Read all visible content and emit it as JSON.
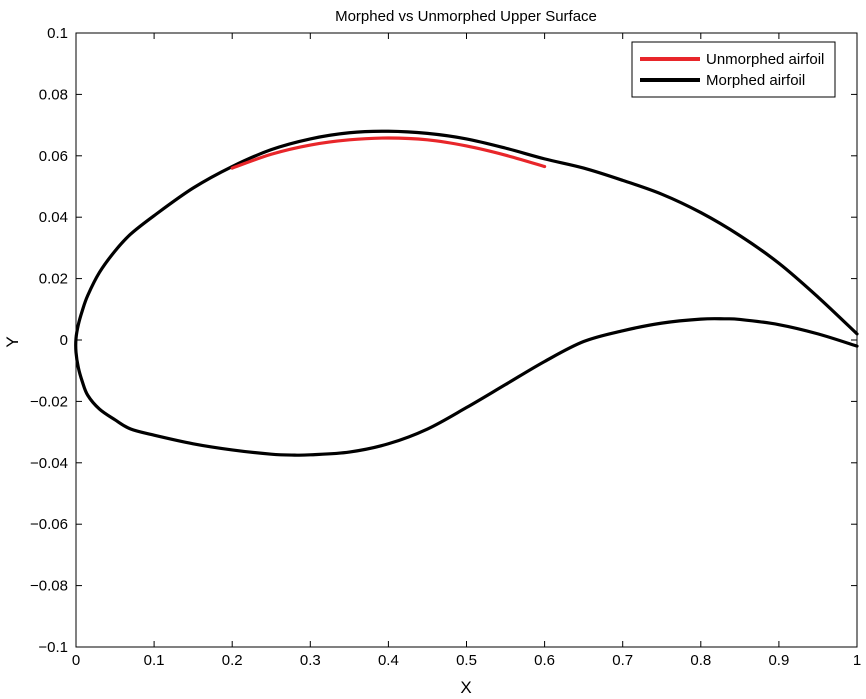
{
  "chart_data": {
    "type": "line",
    "title": "Morphed vs Unmorphed Upper Surface",
    "xlabel": "X",
    "ylabel": "Y",
    "xlim": [
      0,
      1
    ],
    "ylim": [
      -0.1,
      0.1
    ],
    "grid": false,
    "legend_position": "top-right",
    "x_ticks": [
      0,
      0.1,
      0.2,
      0.3,
      0.4,
      0.5,
      0.6,
      0.7,
      0.8,
      0.9,
      1
    ],
    "x_tick_labels": [
      "0",
      "0.1",
      "0.2",
      "0.3",
      "0.4",
      "0.5",
      "0.6",
      "0.7",
      "0.8",
      "0.9",
      "1"
    ],
    "y_ticks": [
      -0.1,
      -0.08,
      -0.06,
      -0.04,
      -0.02,
      0,
      0.02,
      0.04,
      0.06,
      0.08,
      0.1
    ],
    "y_tick_labels": [
      "−0.1",
      "−0.08",
      "−0.06",
      "−0.04",
      "−0.02",
      "0",
      "0.02",
      "0.04",
      "0.06",
      "0.08",
      "0.1"
    ],
    "series": [
      {
        "name": "Unmorphed airfoil",
        "color": "#e8262a",
        "x": [
          0.2,
          0.25,
          0.3,
          0.35,
          0.4,
          0.45,
          0.5,
          0.55,
          0.6
        ],
        "y": [
          0.056,
          0.0605,
          0.0635,
          0.0652,
          0.0658,
          0.0652,
          0.0632,
          0.0602,
          0.0565
        ]
      },
      {
        "name": "Morphed airfoil",
        "color": "#000000",
        "x": [
          1.0,
          0.95,
          0.9,
          0.85,
          0.8,
          0.75,
          0.7,
          0.65,
          0.6,
          0.55,
          0.5,
          0.45,
          0.4,
          0.35,
          0.3,
          0.25,
          0.2,
          0.15,
          0.1,
          0.07,
          0.05,
          0.03,
          0.015,
          0.008,
          0.003,
          0.0,
          0.0,
          0.003,
          0.008,
          0.015,
          0.03,
          0.05,
          0.07,
          0.1,
          0.15,
          0.2,
          0.25,
          0.28,
          0.3,
          0.35,
          0.4,
          0.45,
          0.5,
          0.55,
          0.6,
          0.65,
          0.7,
          0.75,
          0.8,
          0.83,
          0.85,
          0.9,
          0.95,
          1.0
        ],
        "y": [
          0.002,
          0.014,
          0.025,
          0.034,
          0.0415,
          0.0475,
          0.052,
          0.056,
          0.059,
          0.0625,
          0.0655,
          0.0673,
          0.068,
          0.0675,
          0.0655,
          0.062,
          0.0565,
          0.0495,
          0.0405,
          0.0345,
          0.029,
          0.022,
          0.0145,
          0.0095,
          0.005,
          0.0005,
          -0.004,
          -0.009,
          -0.0135,
          -0.018,
          -0.0225,
          -0.026,
          -0.029,
          -0.031,
          -0.0338,
          -0.0358,
          -0.0372,
          -0.0375,
          -0.0374,
          -0.0365,
          -0.0338,
          -0.029,
          -0.022,
          -0.0145,
          -0.007,
          -0.0005,
          0.003,
          0.0055,
          0.0068,
          0.0069,
          0.0067,
          0.005,
          0.002,
          -0.002
        ]
      }
    ]
  }
}
